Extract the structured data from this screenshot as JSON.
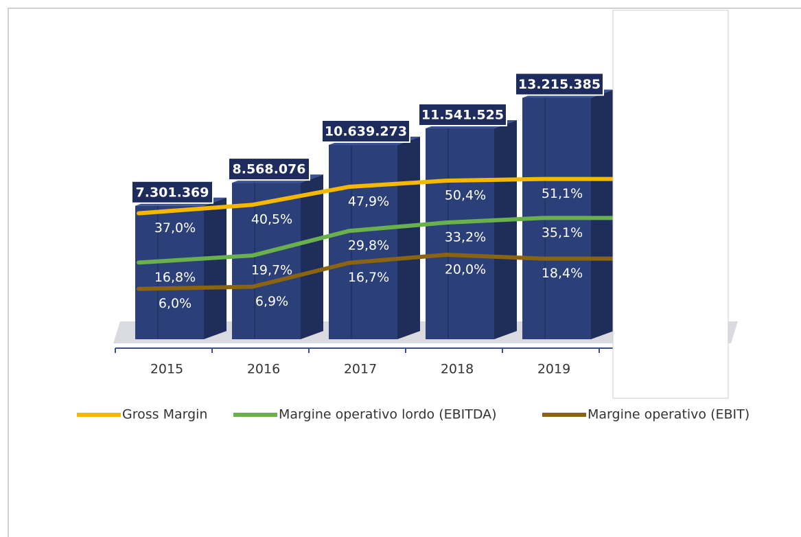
{
  "chart_data": {
    "type": "bar",
    "categories": [
      "2015",
      "2016",
      "2017",
      "2018",
      "2019"
    ],
    "values": [
      7301369,
      8568076,
      10639273,
      11541525,
      13215385
    ],
    "value_labels": [
      "7.301.369",
      "8.568.076",
      "10.639.273",
      "11.541.525",
      "13.215.385"
    ],
    "color": "#2b3f78",
    "ylim": [
      0,
      15000000
    ],
    "y2lim": [
      0,
      100
    ],
    "lines": [
      {
        "name": "Gross Margin",
        "color": "#f5b800",
        "axis": "y2",
        "values": [
          37.0,
          40.5,
          47.9,
          50.4,
          51.1
        ],
        "value_labels": [
          "37,0%",
          "40,5%",
          "47,9%",
          "50,4%",
          "51,1%"
        ]
      },
      {
        "name": "Margine operativo lordo (EBITDA)",
        "color": "#6ab04c",
        "axis": "y2",
        "values": [
          16.8,
          19.7,
          29.8,
          33.2,
          35.1
        ],
        "value_labels": [
          "16,8%",
          "19,7%",
          "29,8%",
          "33,2%",
          "35,1%"
        ]
      },
      {
        "name": "Margine operativo (EBIT)",
        "color": "#8a6410",
        "axis": "y2",
        "values": [
          6.0,
          6.9,
          16.7,
          20.0,
          18.4
        ],
        "value_labels": [
          "6,0%",
          "6,9%",
          "16,7%",
          "20,0%",
          "18,4%"
        ]
      }
    ],
    "legend": "bottom"
  }
}
